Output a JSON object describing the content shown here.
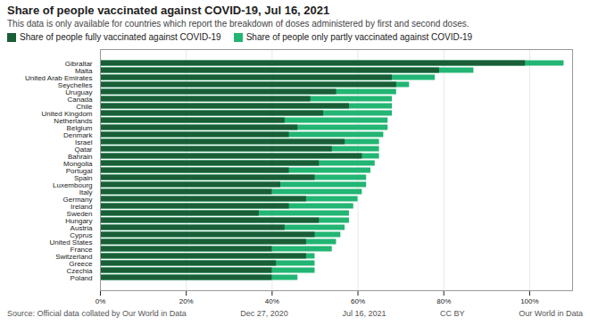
{
  "chart_data": {
    "type": "bar",
    "orientation": "horizontal",
    "stacked": false,
    "title": "Share of people vaccinated against COVID-19, Jul 16, 2021",
    "subtitle": "This data is only available for countries which report the breakdown of doses administered by first and second doses.",
    "categories": [
      "Gibraltar",
      "Malta",
      "United Arab Emirates",
      "Seychelles",
      "Uruguay",
      "Canada",
      "Chile",
      "United Kingdom",
      "Netherlands",
      "Belgium",
      "Denmark",
      "Israel",
      "Qatar",
      "Bahrain",
      "Mongolia",
      "Portugal",
      "Spain",
      "Luxembourg",
      "Italy",
      "Germany",
      "Ireland",
      "Sweden",
      "Hungary",
      "Austria",
      "Cyprus",
      "United States",
      "France",
      "Switzerland",
      "Greece",
      "Czechia",
      "Poland"
    ],
    "series": [
      {
        "name": "Share of people fully vaccinated against COVID-19",
        "color": "#1a5e38",
        "values": [
          99,
          79,
          68,
          69,
          55,
          49,
          58,
          52,
          43,
          46,
          44,
          57,
          54,
          61,
          51,
          44,
          50,
          42,
          40,
          48,
          44,
          37,
          51,
          43,
          50,
          48,
          40,
          48,
          41,
          40,
          40
        ]
      },
      {
        "name": "Share of people only partly vaccinated against COVID-19",
        "color": "#22b573",
        "values": [
          108,
          87,
          78,
          72,
          69,
          68,
          68,
          68,
          67,
          67,
          66,
          65,
          65,
          65,
          64,
          63,
          62,
          62,
          61,
          60,
          59,
          58,
          58,
          57,
          56,
          55,
          54,
          50,
          50,
          50,
          46
        ]
      }
    ],
    "xlim": [
      0,
      110
    ],
    "xticks": [
      {
        "value": 0,
        "label": "0%"
      },
      {
        "value": 20,
        "label": "20%"
      },
      {
        "value": 40,
        "label": "40%"
      },
      {
        "value": 60,
        "label": "60%"
      },
      {
        "value": 80,
        "label": "80%"
      },
      {
        "value": 100,
        "label": "100%"
      }
    ],
    "grid": true,
    "legend": "top left",
    "annotations": [
      "Source: Official data collated by Our World in Data",
      "Dec 27, 2020",
      "Jul 16, 2021",
      "CC BY",
      "Our World in Data"
    ]
  }
}
